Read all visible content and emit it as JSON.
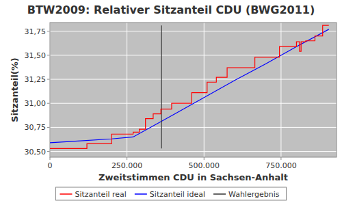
{
  "chart_data": {
    "type": "line",
    "title": "BTW2009: Relativer Sitzanteil CDU (BWG2011)",
    "x_label": "Zweitstimmen CDU in Sachsen-Anhalt",
    "y_label": "Sitzanteil(%)",
    "xlim": [
      0,
      930000
    ],
    "ylim": [
      30.44,
      31.84
    ],
    "xticks": [
      0,
      {
        "value": 250000,
        "label": "250.000"
      },
      {
        "value": 500000,
        "label": "500.000"
      },
      {
        "value": 750000,
        "label": "750.000"
      }
    ],
    "yticks": [
      {
        "value": 30.5,
        "label": "30,50"
      },
      {
        "value": 30.75,
        "label": "30,75"
      },
      {
        "value": 31,
        "label": "31,00"
      },
      {
        "value": 31.25,
        "label": "31,25"
      },
      {
        "value": 31.5,
        "label": "31,50"
      },
      {
        "value": 31.75,
        "label": "31,75"
      }
    ],
    "grid": true,
    "legend": "bottom",
    "series": [
      {
        "name": "Sitzanteil real",
        "color": "#ff0000",
        "type": "step",
        "x": [
          0,
          120000,
          200000,
          270000,
          290000,
          310000,
          335000,
          360000,
          395000,
          460000,
          510000,
          540000,
          575000,
          665000,
          745000,
          800000,
          810000,
          815000,
          830000,
          860000,
          885000,
          905000
        ],
        "values": [
          30.53,
          30.58,
          30.68,
          30.7,
          30.73,
          30.84,
          30.89,
          30.94,
          31.0,
          31.11,
          31.22,
          31.27,
          31.37,
          31.48,
          31.59,
          31.64,
          31.54,
          31.64,
          31.65,
          31.7,
          31.81,
          31.81
        ]
      },
      {
        "name": "Sitzanteil ideal",
        "color": "#0000ff",
        "type": "line",
        "x": [
          0,
          100000,
          200000,
          270000,
          400000,
          500000,
          600000,
          700000,
          800000,
          905000
        ],
        "values": [
          30.59,
          30.61,
          30.63,
          30.65,
          30.88,
          31.06,
          31.24,
          31.41,
          31.59,
          31.77
        ]
      },
      {
        "name": "Wahlergebnis",
        "color": "#333333",
        "type": "line",
        "x": [
          362000,
          362000
        ],
        "values": [
          30.53,
          31.81
        ]
      }
    ]
  }
}
